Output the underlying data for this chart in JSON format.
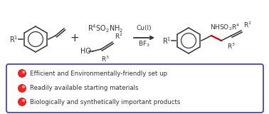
{
  "bullet_points": [
    "Efficient and Environmentally-friendly set up",
    "Readily available starting materials",
    "Biologically and synthetically important products"
  ],
  "bullet_color": "#FF2020",
  "bullet_text_color": "#333333",
  "box_border_color": "#4444BB",
  "box_fill_color": "#FFFFFF",
  "background_color": "#FFFFFF",
  "arrow_color": "#333333",
  "red_bond_color": "#CC0000",
  "structure_color": "#333333",
  "fig_width": 3.78,
  "fig_height": 1.6,
  "dpi": 100,
  "bullet_fontsize": 6.2,
  "reagent_fontsize": 6.5
}
